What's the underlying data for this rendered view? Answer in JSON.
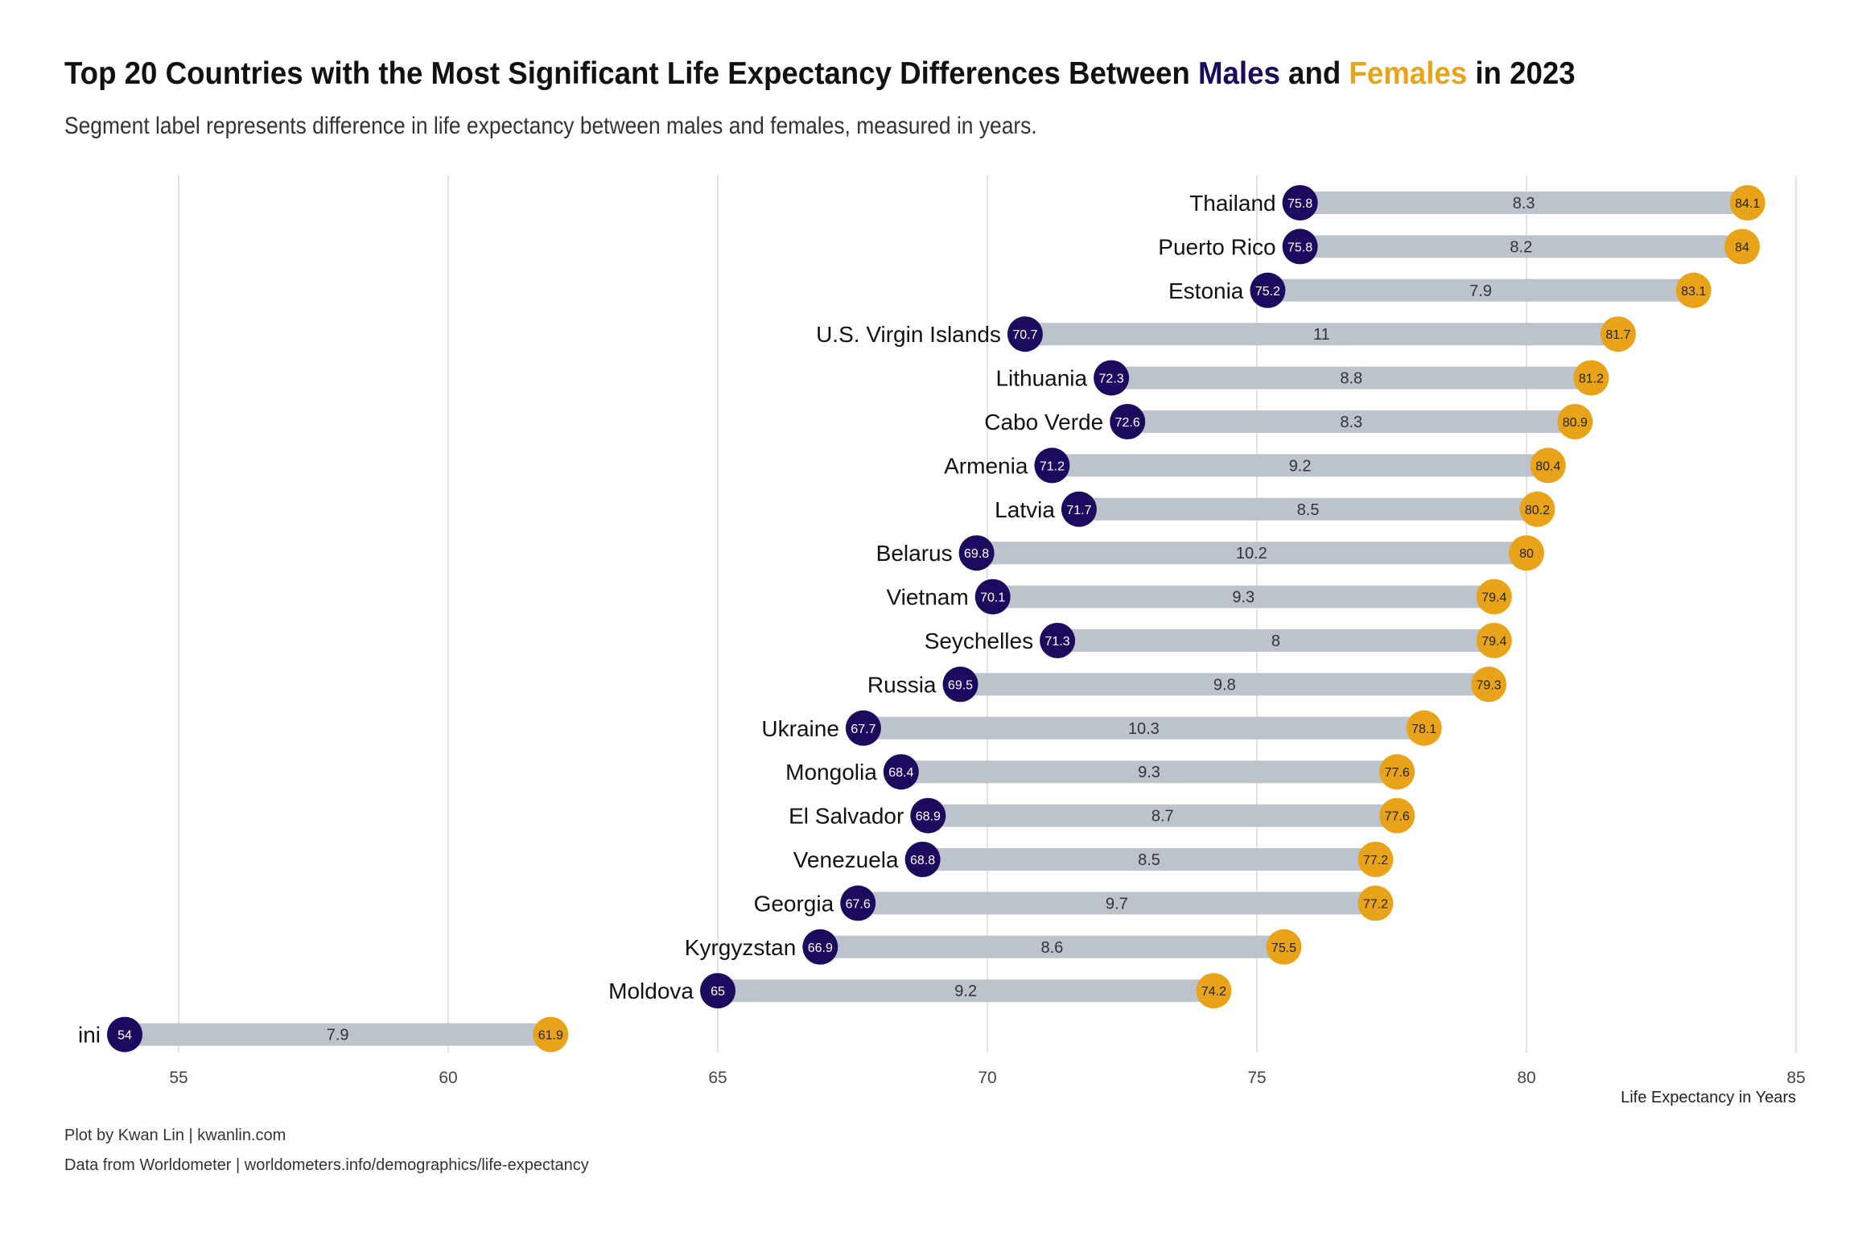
{
  "title": {
    "prefix": "Top 20 Countries with the Most Significant Life Expectancy Differences Between ",
    "males_word": "Males",
    "connector": " and ",
    "females_word": "Females",
    "suffix": " in 2023"
  },
  "subtitle": "Segment label represents difference in life expectancy between males and females, measured in years.",
  "captions": {
    "line1": "Plot by Kwan Lin | kwanlin.com",
    "line2": "Data from Worldometer | worldometers.info/demographics/life-expectancy"
  },
  "colors": {
    "male": "#1c0a5e",
    "female": "#e9a319",
    "segment": "#bcc3cc",
    "grid": "#d9d9d9"
  },
  "chart_data": {
    "type": "dumbbell",
    "xlabel": "Life Expectancy in Years",
    "xlim": [
      53,
      85.5
    ],
    "x_ticks": [
      55,
      60,
      65,
      70,
      75,
      80,
      85
    ],
    "grid": "vertical major gridlines",
    "legend": "none (colors explained in title)",
    "series": [
      {
        "name": "Males"
      },
      {
        "name": "Females"
      }
    ],
    "rows": [
      {
        "country": "Thailand",
        "male": 75.8,
        "female": 84.1,
        "diff": 8.3
      },
      {
        "country": "Puerto Rico",
        "male": 75.8,
        "female": 84,
        "diff": 8.2
      },
      {
        "country": "Estonia",
        "male": 75.2,
        "female": 83.1,
        "diff": 7.9
      },
      {
        "country": "U.S. Virgin Islands",
        "male": 70.7,
        "female": 81.7,
        "diff": 11
      },
      {
        "country": "Lithuania",
        "male": 72.3,
        "female": 81.2,
        "diff": 8.8
      },
      {
        "country": "Cabo Verde",
        "male": 72.6,
        "female": 80.9,
        "diff": 8.3
      },
      {
        "country": "Armenia",
        "male": 71.2,
        "female": 80.4,
        "diff": 9.2
      },
      {
        "country": "Latvia",
        "male": 71.7,
        "female": 80.2,
        "diff": 8.5
      },
      {
        "country": "Belarus",
        "male": 69.8,
        "female": 80,
        "diff": 10.2
      },
      {
        "country": "Vietnam",
        "male": 70.1,
        "female": 79.4,
        "diff": 9.3
      },
      {
        "country": "Seychelles",
        "male": 71.3,
        "female": 79.4,
        "diff": 8
      },
      {
        "country": "Russia",
        "male": 69.5,
        "female": 79.3,
        "diff": 9.8
      },
      {
        "country": "Ukraine",
        "male": 67.7,
        "female": 78.1,
        "diff": 10.3
      },
      {
        "country": "Mongolia",
        "male": 68.4,
        "female": 77.6,
        "diff": 9.3
      },
      {
        "country": "El Salvador",
        "male": 68.9,
        "female": 77.6,
        "diff": 8.7
      },
      {
        "country": "Venezuela",
        "male": 68.8,
        "female": 77.2,
        "diff": 8.5
      },
      {
        "country": "Georgia",
        "male": 67.6,
        "female": 77.2,
        "diff": 9.7
      },
      {
        "country": "Kyrgyzstan",
        "male": 66.9,
        "female": 75.5,
        "diff": 8.6
      },
      {
        "country": "Moldova",
        "male": 65,
        "female": 74.2,
        "diff": 9.2
      },
      {
        "country": "ini",
        "male": 54,
        "female": 61.9,
        "diff": 7.9
      }
    ]
  }
}
